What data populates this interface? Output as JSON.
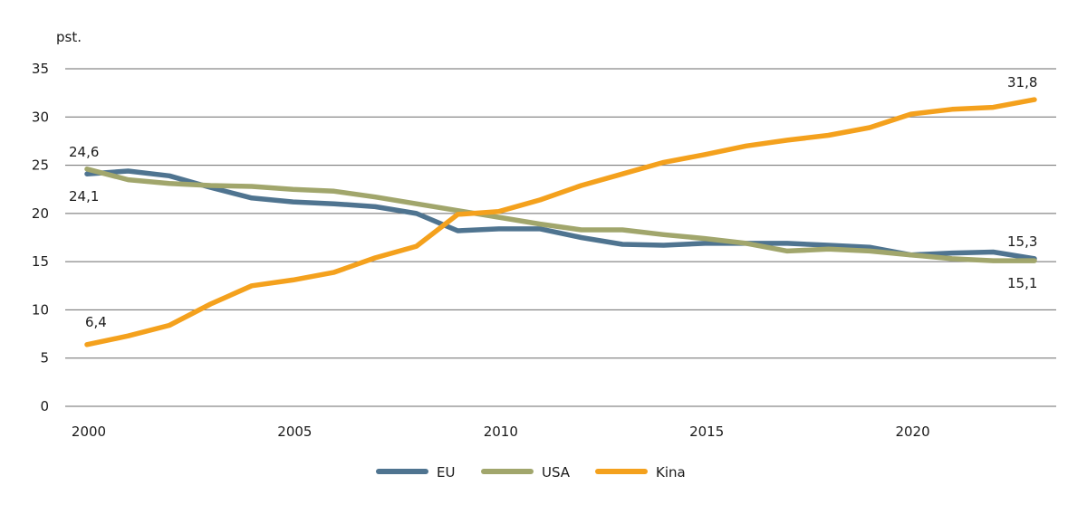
{
  "chart_data": {
    "type": "line",
    "title": "",
    "ylabel": "pst.",
    "xlabel": "",
    "ylim": [
      0,
      35
    ],
    "yticks": [
      0,
      5,
      10,
      15,
      20,
      25,
      30,
      35
    ],
    "xlim": [
      2000,
      2023
    ],
    "xticks": [
      2000,
      2005,
      2010,
      2015,
      2020
    ],
    "grid": true,
    "legend_position": "bottom-center",
    "x": [
      2000,
      2001,
      2002,
      2003,
      2004,
      2005,
      2006,
      2007,
      2008,
      2009,
      2010,
      2011,
      2012,
      2013,
      2014,
      2015,
      2016,
      2017,
      2018,
      2019,
      2020,
      2021,
      2022,
      2023
    ],
    "series": [
      {
        "name": "EU",
        "color": "#4f7490",
        "values": [
          24.1,
          24.4,
          23.9,
          22.7,
          21.6,
          21.2,
          21.0,
          20.7,
          20.0,
          18.2,
          18.4,
          18.4,
          17.5,
          16.8,
          16.7,
          16.9,
          16.9,
          16.9,
          16.7,
          16.5,
          15.7,
          15.9,
          16.0,
          15.3
        ]
      },
      {
        "name": "USA",
        "color": "#a1a66c",
        "values": [
          24.6,
          23.5,
          23.1,
          22.9,
          22.8,
          22.5,
          22.3,
          21.7,
          21.0,
          20.3,
          19.6,
          18.9,
          18.3,
          18.3,
          17.8,
          17.4,
          16.9,
          16.1,
          16.3,
          16.1,
          15.7,
          15.3,
          15.1,
          15.1
        ]
      },
      {
        "name": "Kina",
        "color": "#f4a11d",
        "values": [
          6.4,
          7.3,
          8.4,
          10.6,
          12.5,
          13.1,
          13.9,
          15.4,
          16.6,
          19.9,
          20.2,
          21.4,
          22.9,
          24.1,
          25.3,
          26.1,
          27.0,
          27.6,
          28.1,
          28.9,
          30.3,
          30.8,
          31.0,
          31.8
        ]
      }
    ],
    "annotations": [
      {
        "series": "USA",
        "x": 2000,
        "text": "24,6",
        "position": "above"
      },
      {
        "series": "EU",
        "x": 2000,
        "text": "24,1",
        "position": "below"
      },
      {
        "series": "Kina",
        "x": 2000,
        "text": "6,4",
        "position": "above"
      },
      {
        "series": "Kina",
        "x": 2023,
        "text": "31,8",
        "position": "above"
      },
      {
        "series": "EU",
        "x": 2023,
        "text": "15,3",
        "position": "above"
      },
      {
        "series": "USA",
        "x": 2023,
        "text": "15,1",
        "position": "below"
      }
    ]
  }
}
